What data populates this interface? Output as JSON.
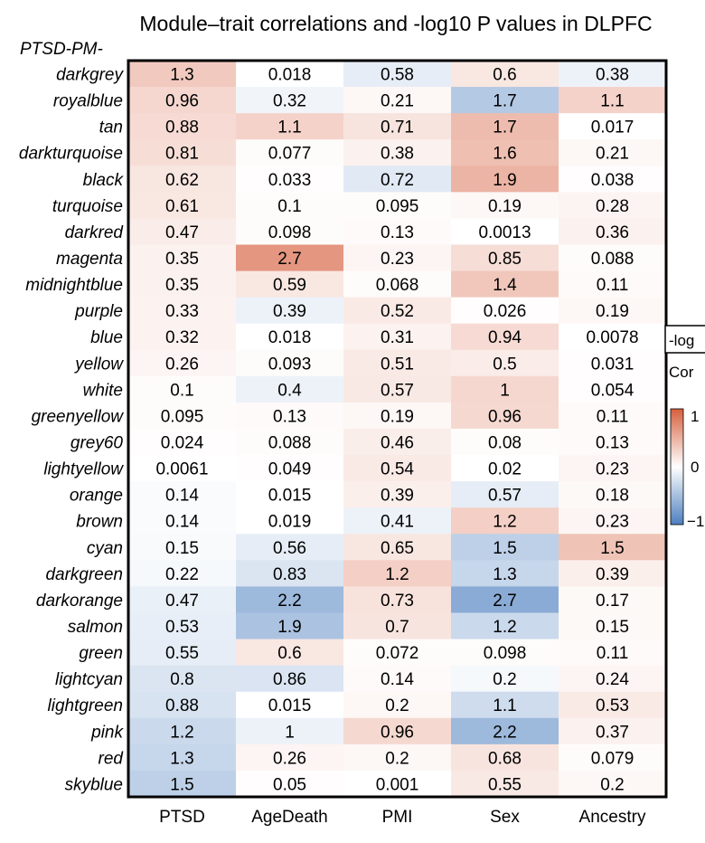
{
  "chart_data": {
    "type": "heatmap",
    "title": "Module–trait correlations and -log10 P values in DLPFC",
    "prefix_label": "PTSD-PM-",
    "columns": [
      "PTSD",
      "AgeDeath",
      "PMI",
      "Sex",
      "Ancestry"
    ],
    "rows": [
      "darkgrey",
      "royalblue",
      "tan",
      "darkturquoise",
      "black",
      "turquoise",
      "darkred",
      "magenta",
      "midnightblue",
      "purple",
      "blue",
      "yellow",
      "white",
      "greenyellow",
      "grey60",
      "lightyellow",
      "orange",
      "brown",
      "cyan",
      "darkgreen",
      "darkorange",
      "salmon",
      "green",
      "lightcyan",
      "lightgreen",
      "pink",
      "red",
      "skyblue"
    ],
    "values": [
      [
        "1.3",
        "0.018",
        "0.58",
        "0.6",
        "0.38"
      ],
      [
        "0.96",
        "0.32",
        "0.21",
        "1.7",
        "1.1"
      ],
      [
        "0.88",
        "1.1",
        "0.71",
        "1.7",
        "0.017"
      ],
      [
        "0.81",
        "0.077",
        "0.38",
        "1.6",
        "0.21"
      ],
      [
        "0.62",
        "0.033",
        "0.72",
        "1.9",
        "0.038"
      ],
      [
        "0.61",
        "0.1",
        "0.095",
        "0.19",
        "0.28"
      ],
      [
        "0.47",
        "0.098",
        "0.13",
        "0.0013",
        "0.36"
      ],
      [
        "0.35",
        "2.7",
        "0.23",
        "0.85",
        "0.088"
      ],
      [
        "0.35",
        "0.59",
        "0.068",
        "1.4",
        "0.11"
      ],
      [
        "0.33",
        "0.39",
        "0.52",
        "0.026",
        "0.19"
      ],
      [
        "0.32",
        "0.018",
        "0.31",
        "0.94",
        "0.0078"
      ],
      [
        "0.26",
        "0.093",
        "0.51",
        "0.5",
        "0.031"
      ],
      [
        "0.1",
        "0.4",
        "0.57",
        "1",
        "0.054"
      ],
      [
        "0.095",
        "0.13",
        "0.19",
        "0.96",
        "0.11"
      ],
      [
        "0.024",
        "0.088",
        "0.46",
        "0.08",
        "0.13"
      ],
      [
        "0.0061",
        "0.049",
        "0.54",
        "0.02",
        "0.23"
      ],
      [
        "0.14",
        "0.015",
        "0.39",
        "0.57",
        "0.18"
      ],
      [
        "0.14",
        "0.019",
        "0.41",
        "1.2",
        "0.23"
      ],
      [
        "0.15",
        "0.56",
        "0.65",
        "1.5",
        "1.5"
      ],
      [
        "0.22",
        "0.83",
        "1.2",
        "1.3",
        "0.39"
      ],
      [
        "0.47",
        "2.2",
        "0.73",
        "2.7",
        "0.17"
      ],
      [
        "0.53",
        "1.9",
        "0.7",
        "1.2",
        "0.15"
      ],
      [
        "0.55",
        "0.6",
        "0.072",
        "0.098",
        "0.11"
      ],
      [
        "0.8",
        "0.86",
        "0.14",
        "0.2",
        "0.24"
      ],
      [
        "0.88",
        "0.015",
        "0.2",
        "1.1",
        "0.53"
      ],
      [
        "1.2",
        "1",
        "0.96",
        "2.2",
        "0.37"
      ],
      [
        "1.3",
        "0.26",
        "0.2",
        "0.68",
        "0.079"
      ],
      [
        "1.5",
        "0.05",
        "0.001",
        "0.55",
        "0.2"
      ]
    ],
    "correlations": [
      [
        0.34,
        0,
        -0.14,
        0.15,
        -0.1
      ],
      [
        0.25,
        -0.08,
        0.05,
        -0.42,
        0.28
      ],
      [
        0.23,
        0.28,
        0.17,
        0.42,
        0
      ],
      [
        0.21,
        0.02,
        0.09,
        0.4,
        0.05
      ],
      [
        0.16,
        0.01,
        -0.17,
        0.47,
        0.01
      ],
      [
        0.15,
        0.02,
        0.02,
        0.05,
        0.07
      ],
      [
        0.12,
        0.02,
        0.03,
        0,
        0.09
      ],
      [
        0.09,
        0.66,
        0.06,
        0.21,
        0.02
      ],
      [
        0.09,
        0.15,
        0.02,
        0.35,
        0.03
      ],
      [
        0.08,
        -0.1,
        0.13,
        0.01,
        0.05
      ],
      [
        0.08,
        0,
        0.08,
        0.23,
        0
      ],
      [
        0.06,
        0.02,
        0.13,
        0.12,
        0.01
      ],
      [
        0.02,
        -0.1,
        0.14,
        0.25,
        0.01
      ],
      [
        0.02,
        0.03,
        0.05,
        0.24,
        0.03
      ],
      [
        0.01,
        0.02,
        0.11,
        0.02,
        0.03
      ],
      [
        0,
        0.01,
        0.13,
        0,
        0.06
      ],
      [
        -0.03,
        0,
        0.1,
        -0.14,
        0.04
      ],
      [
        -0.03,
        0,
        -0.1,
        0.3,
        0.06
      ],
      [
        -0.04,
        -0.14,
        0.16,
        -0.37,
        0.38
      ],
      [
        -0.05,
        -0.2,
        0.3,
        -0.32,
        0.1
      ],
      [
        -0.12,
        -0.55,
        0.18,
        -0.66,
        0.04
      ],
      [
        -0.13,
        -0.47,
        0.17,
        -0.3,
        0.04
      ],
      [
        -0.14,
        0.15,
        0.02,
        0.02,
        0.03
      ],
      [
        -0.2,
        -0.21,
        0.03,
        -0.05,
        0.06
      ],
      [
        -0.22,
        0,
        0.05,
        -0.27,
        0.13
      ],
      [
        -0.3,
        -0.1,
        0.24,
        -0.55,
        0.09
      ],
      [
        -0.32,
        0.06,
        0.05,
        0.17,
        0.02
      ],
      [
        -0.37,
        0.01,
        0,
        0.14,
        0.05
      ]
    ],
    "legend": {
      "title_line1": "-log",
      "title_line2": "Cor",
      "ticks": [
        "1",
        "0",
        "−1"
      ],
      "range": [
        -1,
        1
      ],
      "colors": {
        "high": "#d6603f",
        "mid": "#ffffff",
        "low": "#4d7fbf"
      }
    }
  }
}
